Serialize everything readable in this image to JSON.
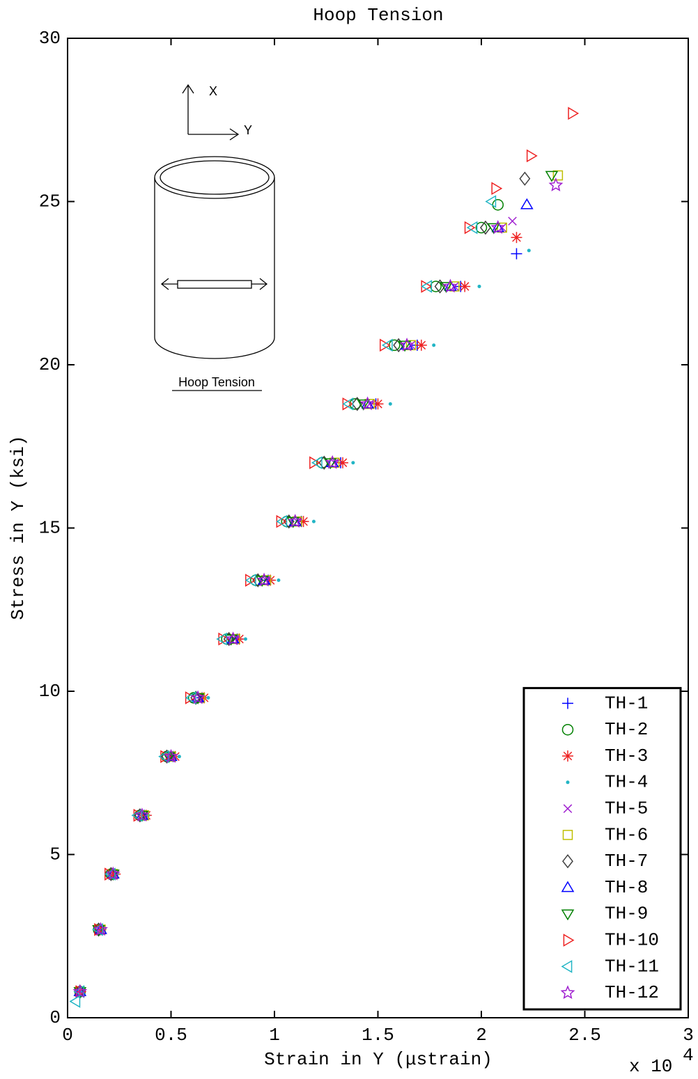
{
  "chart_data": {
    "type": "scatter",
    "title": "Hoop Tension",
    "xlabel": "Strain in Y (μstrain)",
    "ylabel": "Stress in Y (ksi)",
    "x_multiplier": "x 10",
    "x_multiplier_exponent": "4",
    "xlim": [
      0,
      3
    ],
    "xticks": [
      0,
      0.5,
      1,
      1.5,
      2,
      2.5,
      3
    ],
    "ylim": [
      0,
      30
    ],
    "yticks": [
      0,
      5,
      10,
      15,
      20,
      25,
      30
    ],
    "legend": "lower right",
    "series": [
      {
        "name": "TH-1",
        "color": "#0000ff",
        "marker": "plus",
        "x": [
          0.06,
          0.16,
          0.22,
          0.37,
          0.51,
          0.65,
          0.82,
          0.97,
          1.13,
          1.32,
          1.49,
          1.69,
          1.9,
          2.17
        ],
        "values": [
          0.8,
          2.7,
          4.4,
          6.2,
          8.0,
          9.8,
          11.6,
          13.4,
          15.2,
          17.0,
          18.8,
          20.6,
          22.4,
          23.4
        ]
      },
      {
        "name": "TH-2",
        "color": "#008000",
        "marker": "circle",
        "x": [
          0.06,
          0.15,
          0.21,
          0.35,
          0.48,
          0.61,
          0.77,
          0.91,
          1.06,
          1.23,
          1.39,
          1.58,
          1.78,
          2.0,
          2.08
        ],
        "values": [
          0.8,
          2.7,
          4.4,
          6.2,
          8.0,
          9.8,
          11.6,
          13.4,
          15.2,
          17.0,
          18.8,
          20.6,
          22.4,
          24.2,
          24.9
        ]
      },
      {
        "name": "TH-3",
        "color": "#ee2222",
        "marker": "asterisk",
        "x": [
          0.06,
          0.16,
          0.23,
          0.38,
          0.52,
          0.66,
          0.83,
          0.98,
          1.14,
          1.33,
          1.5,
          1.71,
          1.92,
          2.17
        ],
        "values": [
          0.8,
          2.7,
          4.4,
          6.2,
          8.0,
          9.8,
          11.6,
          13.4,
          15.2,
          17.0,
          18.8,
          20.6,
          22.4,
          23.9
        ]
      },
      {
        "name": "TH-4",
        "color": "#22b5c5",
        "marker": "point",
        "x": [
          0.07,
          0.17,
          0.24,
          0.39,
          0.54,
          0.68,
          0.86,
          1.02,
          1.19,
          1.38,
          1.56,
          1.77,
          1.99,
          2.23
        ],
        "values": [
          0.8,
          2.7,
          4.4,
          6.2,
          8.0,
          9.8,
          11.6,
          13.4,
          15.2,
          17.0,
          18.8,
          20.6,
          22.4,
          23.5
        ]
      },
      {
        "name": "TH-5",
        "color": "#a020d0",
        "marker": "cross",
        "x": [
          0.06,
          0.16,
          0.22,
          0.37,
          0.5,
          0.64,
          0.81,
          0.96,
          1.11,
          1.29,
          1.46,
          1.66,
          1.87,
          2.1,
          2.15
        ],
        "values": [
          0.8,
          2.7,
          4.4,
          6.2,
          8.0,
          9.8,
          11.6,
          13.4,
          15.2,
          17.0,
          18.8,
          20.6,
          22.4,
          24.2,
          24.4
        ]
      },
      {
        "name": "TH-6",
        "color": "#bfbf00",
        "marker": "square",
        "x": [
          0.06,
          0.16,
          0.22,
          0.37,
          0.5,
          0.64,
          0.81,
          0.96,
          1.11,
          1.29,
          1.46,
          1.66,
          1.87,
          2.1,
          2.37
        ],
        "values": [
          0.8,
          2.7,
          4.4,
          6.2,
          8.0,
          9.8,
          11.6,
          13.4,
          15.2,
          17.0,
          18.8,
          20.6,
          22.4,
          24.2,
          25.8
        ]
      },
      {
        "name": "TH-7",
        "color": "#404040",
        "marker": "diamond",
        "x": [
          0.06,
          0.15,
          0.21,
          0.35,
          0.48,
          0.62,
          0.78,
          0.92,
          1.07,
          1.24,
          1.4,
          1.6,
          1.8,
          2.02,
          2.21
        ],
        "values": [
          0.8,
          2.7,
          4.4,
          6.2,
          8.0,
          9.8,
          11.6,
          13.4,
          15.2,
          17.0,
          18.8,
          20.6,
          22.4,
          24.2,
          25.7
        ]
      },
      {
        "name": "TH-8",
        "color": "#0000ff",
        "marker": "triangle-up",
        "x": [
          0.06,
          0.16,
          0.22,
          0.36,
          0.5,
          0.63,
          0.8,
          0.95,
          1.1,
          1.28,
          1.45,
          1.64,
          1.85,
          2.08,
          2.22
        ],
        "values": [
          0.8,
          2.7,
          4.4,
          6.2,
          8.0,
          9.8,
          11.6,
          13.4,
          15.2,
          17.0,
          18.8,
          20.6,
          22.4,
          24.2,
          24.9
        ]
      },
      {
        "name": "TH-9",
        "color": "#008000",
        "marker": "triangle-down",
        "x": [
          0.06,
          0.15,
          0.22,
          0.36,
          0.49,
          0.63,
          0.79,
          0.94,
          1.09,
          1.27,
          1.43,
          1.63,
          1.83,
          2.06,
          2.34
        ],
        "values": [
          0.8,
          2.7,
          4.4,
          6.2,
          8.0,
          9.8,
          11.6,
          13.4,
          15.2,
          17.0,
          18.8,
          20.6,
          22.4,
          24.2,
          25.8
        ]
      },
      {
        "name": "TH-10",
        "color": "#ee2222",
        "marker": "triangle-right",
        "x": [
          0.06,
          0.15,
          0.2,
          0.34,
          0.47,
          0.59,
          0.75,
          0.88,
          1.03,
          1.19,
          1.35,
          1.53,
          1.73,
          1.94,
          2.07,
          2.24,
          2.44
        ],
        "values": [
          0.8,
          2.7,
          4.4,
          6.2,
          8.0,
          9.8,
          11.6,
          13.4,
          15.2,
          17.0,
          18.8,
          20.6,
          22.4,
          24.2,
          25.4,
          26.4,
          27.7
        ]
      },
      {
        "name": "TH-11",
        "color": "#22b5c5",
        "marker": "triangle-left",
        "x": [
          0.04,
          0.06,
          0.15,
          0.21,
          0.34,
          0.47,
          0.6,
          0.75,
          0.89,
          1.04,
          1.21,
          1.36,
          1.55,
          1.74,
          1.96,
          2.05
        ],
        "values": [
          0.5,
          0.8,
          2.7,
          4.4,
          6.2,
          8.0,
          9.8,
          11.6,
          13.4,
          15.2,
          17.0,
          18.8,
          20.6,
          22.4,
          24.2,
          25.0
        ]
      },
      {
        "name": "TH-12",
        "color": "#a020d0",
        "marker": "star",
        "x": [
          0.06,
          0.16,
          0.22,
          0.36,
          0.5,
          0.63,
          0.8,
          0.95,
          1.1,
          1.28,
          1.45,
          1.64,
          1.85,
          2.08,
          2.36
        ],
        "values": [
          0.8,
          2.7,
          4.4,
          6.2,
          8.0,
          9.8,
          11.6,
          13.4,
          15.2,
          17.0,
          18.8,
          20.6,
          22.4,
          24.2,
          25.5
        ]
      }
    ]
  },
  "inset": {
    "axis_x": "X",
    "axis_y": "Y",
    "caption": "Hoop Tension"
  }
}
